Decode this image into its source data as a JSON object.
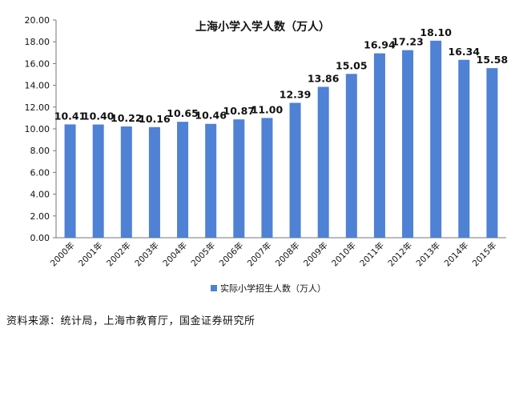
{
  "chart_data": {
    "type": "bar",
    "title": "上海小学入学人数（万人）",
    "categories": [
      "2000年",
      "2001年",
      "2002年",
      "2003年",
      "2004年",
      "2005年",
      "2006年",
      "2007年",
      "2008年",
      "2009年",
      "2010年",
      "2011年",
      "2012年",
      "2013年",
      "2014年",
      "2015年"
    ],
    "series": [
      {
        "name": "实际小学招生人数（万人）",
        "values": [
          10.41,
          10.4,
          10.22,
          10.16,
          10.65,
          10.46,
          10.87,
          11.0,
          12.39,
          13.86,
          15.05,
          16.94,
          17.23,
          18.1,
          16.34,
          15.58
        ],
        "color": "#4f81d4"
      }
    ],
    "data_labels": [
      "10.41",
      "10.40",
      "10.22",
      "10.16",
      "10.65",
      "10.46",
      "10.87",
      "11.00",
      "12.39",
      "13.86",
      "15.05",
      "16.94",
      "17.23",
      "18.10",
      "16.34",
      "15.58"
    ],
    "ylim": [
      0,
      20
    ],
    "y_ticks": [
      "0.00",
      "2.00",
      "4.00",
      "6.00",
      "8.00",
      "10.00",
      "12.00",
      "14.00",
      "16.00",
      "18.00",
      "20.00"
    ],
    "legend_position": "bottom",
    "grid": false
  },
  "source_note": "资料来源：统计局，上海市教育厅，国金证券研究所"
}
